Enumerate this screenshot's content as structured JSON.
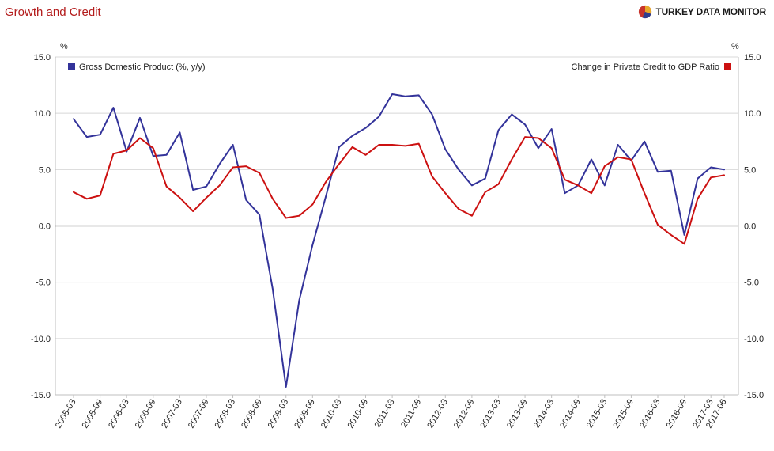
{
  "header": {
    "title": "Growth and Credit",
    "brand": "TURKEY DATA MONITOR"
  },
  "colors": {
    "title": "#b31b1b",
    "gdp_series": "#33339a",
    "credit_series": "#cc1111",
    "zero_line": "#444444",
    "grid": "#d8d8d8",
    "frame": "#bfbfbf"
  },
  "chart_data": {
    "type": "line",
    "title": "Growth and Credit",
    "y_unit_left": "%",
    "y_unit_right": "%",
    "ylim": [
      -15,
      15
    ],
    "yticks": [
      "15.0",
      "10.0",
      "5.0",
      "0.0",
      "-5.0",
      "-10.0",
      "-15.0"
    ],
    "ytick_values": [
      15,
      10,
      5,
      0,
      -5,
      -10,
      -15
    ],
    "xtick_labels": [
      "2005-03",
      "2005-09",
      "2006-03",
      "2006-09",
      "2007-03",
      "2007-09",
      "2008-03",
      "2008-09",
      "2009-03",
      "2009-09",
      "2010-03",
      "2010-09",
      "2011-03",
      "2011-09",
      "2012-03",
      "2012-09",
      "2013-03",
      "2013-09",
      "2014-03",
      "2014-09",
      "2015-03",
      "2015-09",
      "2016-03",
      "2016-09",
      "2017-03",
      "2017-06"
    ],
    "grid": "horizontal",
    "legend_placement": "top",
    "x": [
      "2005-03",
      "2005-06",
      "2005-09",
      "2005-12",
      "2006-03",
      "2006-06",
      "2006-09",
      "2006-12",
      "2007-03",
      "2007-06",
      "2007-09",
      "2007-12",
      "2008-03",
      "2008-06",
      "2008-09",
      "2008-12",
      "2009-03",
      "2009-06",
      "2009-09",
      "2009-12",
      "2010-03",
      "2010-06",
      "2010-09",
      "2010-12",
      "2011-03",
      "2011-06",
      "2011-09",
      "2011-12",
      "2012-03",
      "2012-06",
      "2012-09",
      "2012-12",
      "2013-03",
      "2013-06",
      "2013-09",
      "2013-12",
      "2014-03",
      "2014-06",
      "2014-09",
      "2014-12",
      "2015-03",
      "2015-06",
      "2015-09",
      "2015-12",
      "2016-03",
      "2016-06",
      "2016-09",
      "2016-12",
      "2017-03",
      "2017-06"
    ],
    "series": [
      {
        "name": "Gross Domestic Product (%, y/y)",
        "legend_position": "left",
        "values": [
          9.5,
          7.9,
          8.1,
          10.5,
          6.6,
          9.6,
          6.2,
          6.3,
          8.3,
          3.2,
          3.5,
          5.5,
          7.2,
          2.3,
          1.0,
          -5.6,
          -14.3,
          -6.6,
          -1.7,
          2.6,
          7.0,
          8.0,
          8.7,
          9.7,
          11.7,
          11.5,
          11.6,
          9.9,
          6.8,
          5.0,
          3.6,
          4.2,
          8.5,
          9.9,
          9.0,
          6.9,
          8.6,
          2.9,
          3.6,
          5.9,
          3.6,
          7.2,
          5.8,
          7.5,
          4.8,
          4.9,
          -0.8,
          4.2,
          5.2,
          5.0
        ]
      },
      {
        "name": "Change in Private Credit to GDP Ratio",
        "legend_position": "right",
        "values": [
          3.0,
          2.4,
          2.7,
          6.4,
          6.7,
          7.8,
          6.9,
          3.5,
          2.5,
          1.3,
          2.5,
          3.6,
          5.2,
          5.3,
          4.7,
          2.4,
          0.7,
          0.9,
          1.9,
          3.9,
          5.5,
          7.0,
          6.3,
          7.2,
          7.2,
          7.1,
          7.3,
          4.4,
          2.9,
          1.5,
          0.9,
          3.0,
          3.7,
          5.9,
          7.9,
          7.8,
          6.9,
          4.1,
          3.6,
          2.9,
          5.3,
          6.1,
          5.9,
          2.9,
          0.1,
          -0.8,
          -1.6,
          2.4,
          4.3,
          4.5
        ]
      }
    ]
  }
}
